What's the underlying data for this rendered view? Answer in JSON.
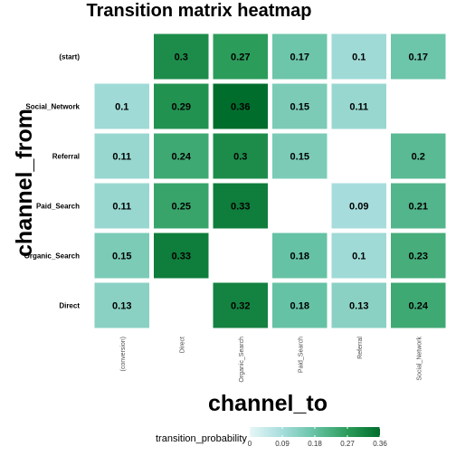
{
  "chart_data": {
    "type": "heatmap",
    "title": "Transition matrix heatmap",
    "xlabel": "channel_to",
    "ylabel": "channel_from",
    "x_categories": [
      "(conversion)",
      "Direct",
      "Organic_Search",
      "Paid_Search",
      "Referral",
      "Social_Network"
    ],
    "y_categories": [
      "(start)",
      "Social_Network",
      "Referral",
      "Paid_Search",
      "Organic_Search",
      "Direct"
    ],
    "cells": [
      {
        "from": "(start)",
        "to": "Direct",
        "value": 0.3,
        "label": "0.3"
      },
      {
        "from": "(start)",
        "to": "Organic_Search",
        "value": 0.27,
        "label": "0.27"
      },
      {
        "from": "(start)",
        "to": "Paid_Search",
        "value": 0.17,
        "label": "0.17"
      },
      {
        "from": "(start)",
        "to": "Referral",
        "value": 0.1,
        "label": "0.1"
      },
      {
        "from": "(start)",
        "to": "Social_Network",
        "value": 0.17,
        "label": "0.17"
      },
      {
        "from": "Social_Network",
        "to": "(conversion)",
        "value": 0.1,
        "label": "0.1"
      },
      {
        "from": "Social_Network",
        "to": "Direct",
        "value": 0.29,
        "label": "0.29"
      },
      {
        "from": "Social_Network",
        "to": "Organic_Search",
        "value": 0.36,
        "label": "0.36"
      },
      {
        "from": "Social_Network",
        "to": "Paid_Search",
        "value": 0.15,
        "label": "0.15"
      },
      {
        "from": "Social_Network",
        "to": "Referral",
        "value": 0.11,
        "label": "0.11"
      },
      {
        "from": "Referral",
        "to": "(conversion)",
        "value": 0.11,
        "label": "0.11"
      },
      {
        "from": "Referral",
        "to": "Direct",
        "value": 0.24,
        "label": "0.24"
      },
      {
        "from": "Referral",
        "to": "Organic_Search",
        "value": 0.3,
        "label": "0.3"
      },
      {
        "from": "Referral",
        "to": "Paid_Search",
        "value": 0.15,
        "label": "0.15"
      },
      {
        "from": "Referral",
        "to": "Social_Network",
        "value": 0.2,
        "label": "0.2"
      },
      {
        "from": "Paid_Search",
        "to": "(conversion)",
        "value": 0.11,
        "label": "0.11"
      },
      {
        "from": "Paid_Search",
        "to": "Direct",
        "value": 0.25,
        "label": "0.25"
      },
      {
        "from": "Paid_Search",
        "to": "Organic_Search",
        "value": 0.33,
        "label": "0.33"
      },
      {
        "from": "Paid_Search",
        "to": "Referral",
        "value": 0.09,
        "label": "0.09"
      },
      {
        "from": "Paid_Search",
        "to": "Social_Network",
        "value": 0.21,
        "label": "0.21"
      },
      {
        "from": "Organic_Search",
        "to": "(conversion)",
        "value": 0.15,
        "label": "0.15"
      },
      {
        "from": "Organic_Search",
        "to": "Direct",
        "value": 0.33,
        "label": "0.33"
      },
      {
        "from": "Organic_Search",
        "to": "Paid_Search",
        "value": 0.18,
        "label": "0.18"
      },
      {
        "from": "Organic_Search",
        "to": "Referral",
        "value": 0.1,
        "label": "0.1"
      },
      {
        "from": "Organic_Search",
        "to": "Social_Network",
        "value": 0.23,
        "label": "0.23"
      },
      {
        "from": "Direct",
        "to": "(conversion)",
        "value": 0.13,
        "label": "0.13"
      },
      {
        "from": "Direct",
        "to": "Organic_Search",
        "value": 0.32,
        "label": "0.32"
      },
      {
        "from": "Direct",
        "to": "Paid_Search",
        "value": 0.18,
        "label": "0.18"
      },
      {
        "from": "Direct",
        "to": "Referral",
        "value": 0.13,
        "label": "0.13"
      },
      {
        "from": "Direct",
        "to": "Social_Network",
        "value": 0.24,
        "label": "0.24"
      }
    ],
    "legend": {
      "title": "transition_probability",
      "placement": "bottom",
      "range": [
        0,
        0.36
      ],
      "ticks": [
        0,
        0.09,
        0.18,
        0.27,
        0.36
      ],
      "tick_labels": [
        "0",
        "0.09",
        "0.18",
        "0.27",
        "0.36"
      ],
      "color_low": "#e6f6f7",
      "color_high": "#006d2c"
    },
    "grid": false
  }
}
